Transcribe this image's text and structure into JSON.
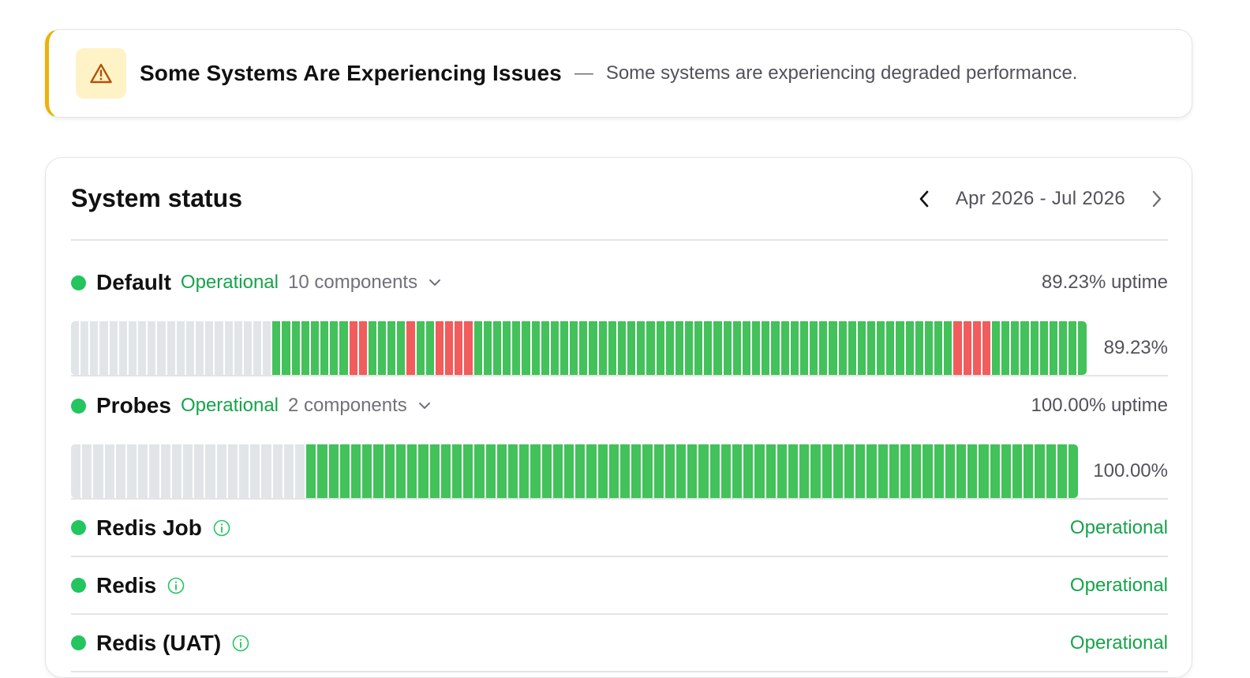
{
  "banner": {
    "title": "Some Systems Are Experiencing Issues",
    "separator": "—",
    "description": "Some systems are experiencing degraded performance.",
    "icon": "warning-triangle-icon",
    "accent_color": "#eab308"
  },
  "status_card": {
    "title": "System status",
    "date_range": "Apr 2026 - Jul 2026"
  },
  "colors": {
    "operational": "#43c15a",
    "outage": "#f25c5c",
    "no_data": "#e2e5e8"
  },
  "groups": [
    {
      "name": "Default",
      "status": "Operational",
      "components": "10 components",
      "uptime_label": "89.23% uptime",
      "uptime_pct": "89.23%",
      "history": "nnnnnnnnnnnnnnnnnnnnnggggggggrrggggrggrrrrggggggggggggggggggggggggggggggggggggggggggggggggggrrrrgggggggggg"
    },
    {
      "name": "Probes",
      "status": "Operational",
      "components": "2 components",
      "uptime_label": "100.00% uptime",
      "uptime_pct": "100.00%",
      "history": "nnnnnnnnnnnnnnnnnnnnnggggggggggggggggggggggggggggggggggggggggggggggggggggggggggggggggggggg"
    }
  ],
  "components": [
    {
      "name": "Redis Job",
      "status": "Operational"
    },
    {
      "name": "Redis",
      "status": "Operational"
    },
    {
      "name": "Redis (UAT)",
      "status": "Operational"
    }
  ]
}
